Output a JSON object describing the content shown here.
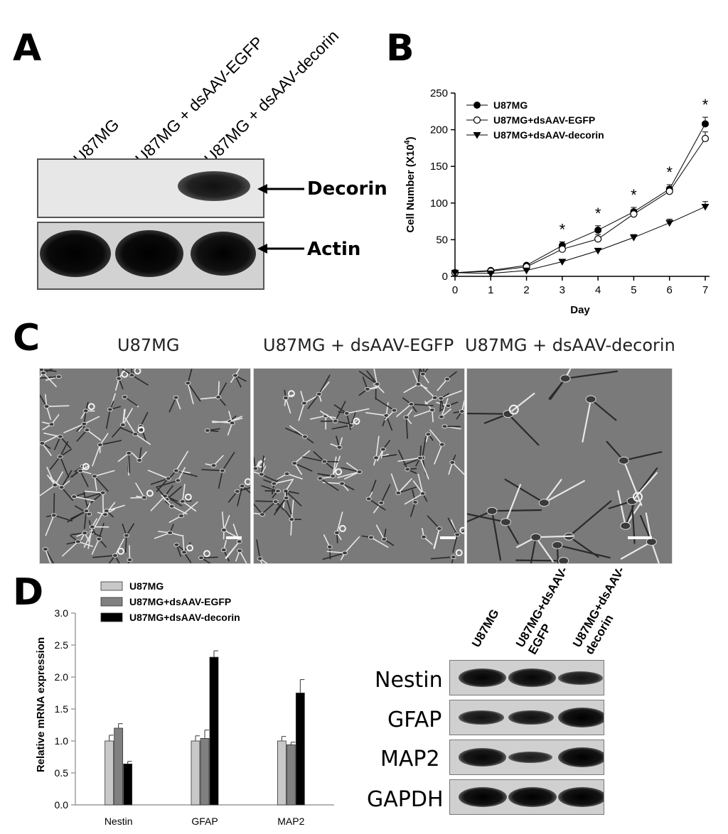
{
  "panels": {
    "a": "A",
    "b": "B",
    "c": "C",
    "d": "D"
  },
  "panel_a": {
    "lanes": [
      "U87MG",
      "U87MG + dsAAV-EGFP",
      "U87MG + dsAAV-decorin"
    ],
    "bands": [
      {
        "label": "Decorin",
        "lane_intensity": [
          0,
          0,
          1
        ]
      },
      {
        "label": "Actin",
        "lane_intensity": [
          1,
          1,
          1
        ]
      }
    ]
  },
  "panel_c": {
    "titles": [
      "U87MG",
      "U87MG + dsAAV-EGFP",
      "U87MG + dsAAV-decorin"
    ]
  },
  "panel_d_blot": {
    "lanes": [
      "U87MG",
      "U87MG+dsAAV-\nEGFP",
      "U87MG+dsAAV-\ndecorin"
    ],
    "rows": [
      {
        "label": "Nestin",
        "lane_intensity": [
          0.9,
          0.85,
          0.5
        ]
      },
      {
        "label": "GFAP",
        "lane_intensity": [
          0.55,
          0.6,
          1.0
        ]
      },
      {
        "label": "MAP2",
        "lane_intensity": [
          0.85,
          0.35,
          1.0
        ]
      },
      {
        "label": "GAPDH",
        "lane_intensity": [
          1.0,
          1.0,
          1.0
        ]
      }
    ]
  },
  "chart_data": [
    {
      "type": "line",
      "panel": "B",
      "title": "",
      "xlabel": "Day",
      "ylabel": "Cell Number (X10",
      "ylabel_sup": "4",
      "ylabel_end": ")",
      "x": [
        0,
        1,
        2,
        3,
        4,
        5,
        6,
        7
      ],
      "xlim": [
        0,
        7
      ],
      "ylim": [
        0,
        250
      ],
      "yticks": [
        0,
        50,
        100,
        150,
        200,
        250
      ],
      "grid": false,
      "legend_position": "top-left",
      "series": [
        {
          "name": "U87MG",
          "marker": "filled-circle",
          "values": [
            5,
            8,
            15,
            42,
            63,
            88,
            119,
            208
          ],
          "errors": [
            1,
            1,
            2,
            5,
            6,
            6,
            6,
            9
          ]
        },
        {
          "name": "U87MG+dsAAV-EGFP",
          "marker": "open-circle",
          "values": [
            5,
            7,
            13,
            37,
            51,
            85,
            116,
            188
          ],
          "errors": [
            1,
            1,
            2,
            5,
            6,
            6,
            6,
            9
          ]
        },
        {
          "name": "U87MG+dsAAV-decorin",
          "marker": "filled-triangle-down",
          "values": [
            5,
            4,
            8,
            20,
            35,
            53,
            73,
            95
          ],
          "errors": [
            1,
            1,
            1,
            2,
            3,
            4,
            5,
            7
          ]
        }
      ],
      "annotations": [
        {
          "x": 3,
          "text": "*"
        },
        {
          "x": 4,
          "text": "*"
        },
        {
          "x": 5,
          "text": "*"
        },
        {
          "x": 6,
          "text": "*"
        },
        {
          "x": 7,
          "text": "*"
        }
      ]
    },
    {
      "type": "bar",
      "panel": "D",
      "title": "",
      "xlabel": "",
      "ylabel": "Relative mRNA expression",
      "categories": [
        "Nestin",
        "GFAP",
        "MAP2"
      ],
      "ylim": [
        0,
        3.0
      ],
      "yticks": [
        "0.0",
        "0.5",
        "1.0",
        "1.5",
        "2.0",
        "2.5",
        "3.0"
      ],
      "grid": false,
      "legend_position": "top-left",
      "series": [
        {
          "name": "U87MG",
          "color": "#c8c8c8",
          "values": [
            1.0,
            1.0,
            1.0
          ],
          "errors": [
            0.09,
            0.08,
            0.07
          ]
        },
        {
          "name": "U87MG+dsAAV-EGFP",
          "color": "#808080",
          "values": [
            1.2,
            1.04,
            0.94
          ],
          "errors": [
            0.07,
            0.13,
            0.04
          ]
        },
        {
          "name": "U87MG+dsAAV-decorin",
          "color": "#000000",
          "values": [
            0.64,
            2.31,
            1.75
          ],
          "errors": [
            0.04,
            0.1,
            0.21
          ]
        }
      ]
    }
  ]
}
